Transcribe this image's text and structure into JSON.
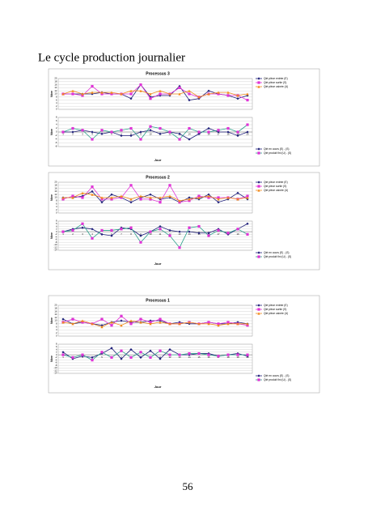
{
  "heading": "Le cycle production journalier",
  "page_number": "56",
  "chart_data": [
    {
      "type": "line",
      "title": "Processus 3",
      "xlabel": "Jour",
      "categories": [
        1,
        2,
        3,
        4,
        5,
        6,
        7,
        8,
        9,
        10,
        11,
        12,
        13,
        14,
        15,
        16,
        17,
        18,
        19,
        20
      ],
      "panels": [
        {
          "ylabel": "Nbre",
          "ylim": [
            0,
            20
          ],
          "yticks": [
            0,
            2,
            4,
            6,
            8,
            10,
            12,
            14,
            16,
            18,
            20
          ],
          "grid": true,
          "series": [
            {
              "name": "Qté pièce entrée (E)",
              "color": "#1f1f7a",
              "values": [
                10,
                10,
                10,
                10,
                11,
                10,
                10,
                7,
                16,
                8,
                9,
                9,
                15,
                6,
                7,
                12,
                10,
                9,
                7,
                9
              ]
            },
            {
              "name": "Qté pièce sortie (S)",
              "color": "#e033d6",
              "values": [
                10,
                10,
                9,
                15,
                10,
                10,
                10,
                10,
                16,
                7,
                10,
                10,
                14,
                10,
                8,
                10,
                10,
                9,
                9,
                6
              ]
            },
            {
              "name": "Qté pièce usinée (U)",
              "color": "#f08a1c",
              "values": [
                10,
                12,
                10,
                11,
                11,
                11,
                10,
                12,
                12,
                10,
                12,
                10,
                10,
                12,
                8,
                10,
                11,
                11,
                9,
                10
              ]
            }
          ]
        },
        {
          "ylabel": "Nbre",
          "ylim": [
            -8,
            8
          ],
          "yticks": [
            -8,
            -6,
            -4,
            -2,
            0,
            2,
            4,
            6,
            8
          ],
          "grid": true,
          "series": [
            {
              "name": "Qté en cours (E) - (S)",
              "color": "#1f1f7a",
              "values": [
                0,
                0,
                1,
                0,
                -1,
                0,
                -2,
                -2,
                0,
                1,
                -1,
                0,
                -1,
                -4,
                -1,
                2,
                0,
                0,
                -2,
                0
              ]
            },
            {
              "name": "Qté produit fini (U) - (S)",
              "color": "#2aa08a",
              "values": [
                0,
                2,
                1,
                -4,
                1,
                0,
                1,
                2,
                -4,
                3,
                2,
                0,
                -4,
                2,
                0,
                0,
                1,
                2,
                0,
                4
              ]
            }
          ]
        }
      ]
    },
    {
      "type": "line",
      "title": "Processus 2",
      "xlabel": "Jour",
      "categories": [
        1,
        2,
        3,
        4,
        5,
        6,
        7,
        8,
        9,
        10,
        11,
        12,
        13,
        14,
        15,
        16,
        17,
        18,
        19,
        20
      ],
      "panels": [
        {
          "ylabel": "Nbre",
          "ylim": [
            0,
            20
          ],
          "yticks": [
            0,
            2,
            4,
            6,
            8,
            10,
            12,
            14,
            16,
            18,
            20
          ],
          "grid": true,
          "series": [
            {
              "name": "Qté pièce entrée (E)",
              "color": "#1f1f7a",
              "values": [
                10,
                10,
                11,
                14,
                7,
                12,
                10,
                7,
                10,
                12,
                9,
                10,
                7,
                10,
                9,
                12,
                7,
                9,
                13,
                9
              ]
            },
            {
              "name": "Qté pièce sortie (S)",
              "color": "#e033d6",
              "values": [
                9,
                11,
                10,
                17,
                9,
                9,
                10,
                18,
                9,
                9,
                7,
                18,
                7,
                8,
                11,
                10,
                10,
                10,
                9,
                11
              ]
            },
            {
              "name": "Qté pièce usinée (U)",
              "color": "#f08a1c",
              "values": [
                10,
                10,
                13,
                12,
                10,
                10,
                11,
                9,
                11,
                10,
                10,
                11,
                8,
                9,
                10,
                11,
                9,
                10,
                9,
                10
              ]
            }
          ]
        },
        {
          "ylabel": "Nbre",
          "ylim": [
            -14,
            8
          ],
          "yticks": [
            -14,
            -12,
            -10,
            -8,
            -6,
            -4,
            -2,
            0,
            2,
            4,
            6,
            8
          ],
          "grid": true,
          "series": [
            {
              "name": "Qté en cours (E) - (S)",
              "color": "#1f1f7a",
              "values": [
                0,
                2,
                3,
                2,
                -2,
                -3,
                3,
                2,
                -3,
                0,
                4,
                1,
                0,
                0,
                -1,
                -1,
                2,
                -2,
                2,
                6
              ]
            },
            {
              "name": "Qté produit fini (U) - (S)",
              "color": "#2aa08a",
              "values": [
                0,
                1,
                6,
                -5,
                1,
                1,
                2,
                3,
                -8,
                0,
                2,
                -3,
                -12,
                3,
                4,
                -3,
                1,
                -1,
                2,
                -2
              ]
            }
          ]
        }
      ]
    },
    {
      "type": "line",
      "title": "Processus 1",
      "xlabel": "Jour",
      "categories": [
        1,
        2,
        3,
        4,
        5,
        6,
        7,
        8,
        9,
        10,
        11,
        12,
        13,
        14,
        15,
        16,
        17,
        18,
        19,
        20
      ],
      "panels": [
        {
          "ylabel": "Nbre",
          "ylim": [
            0,
            20
          ],
          "yticks": [
            0,
            2,
            4,
            6,
            8,
            10,
            12,
            14,
            16,
            18,
            20
          ],
          "grid": true,
          "series": [
            {
              "name": "Qté pièce entrée (E)",
              "color": "#1f1f7a",
              "values": [
                11,
                8,
                9,
                8,
                7,
                9,
                10,
                9,
                9,
                10,
                10,
                8,
                9,
                8,
                8,
                9,
                8,
                8,
                9,
                8
              ]
            },
            {
              "name": "Qté pièce sortie (S)",
              "color": "#e033d6",
              "values": [
                9,
                11,
                9,
                8,
                11,
                7,
                13,
                8,
                11,
                9,
                11,
                8,
                8,
                9,
                8,
                9,
                8,
                9,
                8,
                7
              ]
            },
            {
              "name": "Qté pièce usinée (U)",
              "color": "#f08a1c",
              "values": [
                9,
                8,
                10,
                8,
                6,
                9,
                7,
                10,
                9,
                8,
                9,
                8,
                8,
                9,
                8,
                8,
                7,
                8,
                8,
                8
              ]
            }
          ]
        },
        {
          "ylabel": "Nbre",
          "ylim": [
            -14,
            8
          ],
          "yticks": [
            -14,
            -12,
            -10,
            -8,
            -6,
            -4,
            -2,
            0,
            2,
            4,
            6,
            8
          ],
          "grid": true,
          "series": [
            {
              "name": "Qté en cours (E) - (S)",
              "color": "#1f1f7a",
              "values": [
                2,
                -3,
                -1,
                -2,
                1,
                5,
                -3,
                4,
                -2,
                3,
                -3,
                4,
                0,
                0,
                1,
                1,
                -1,
                0,
                1,
                -1
              ]
            },
            {
              "name": "Qté produit fini (U) - (S)",
              "color": "#2aa08a",
              "values": [
                0,
                -2,
                0,
                -4,
                2,
                -2,
                3,
                -2,
                2,
                -2,
                3,
                0,
                0,
                1,
                1,
                0,
                -1,
                0,
                0,
                0
              ]
            }
          ]
        }
      ]
    }
  ]
}
